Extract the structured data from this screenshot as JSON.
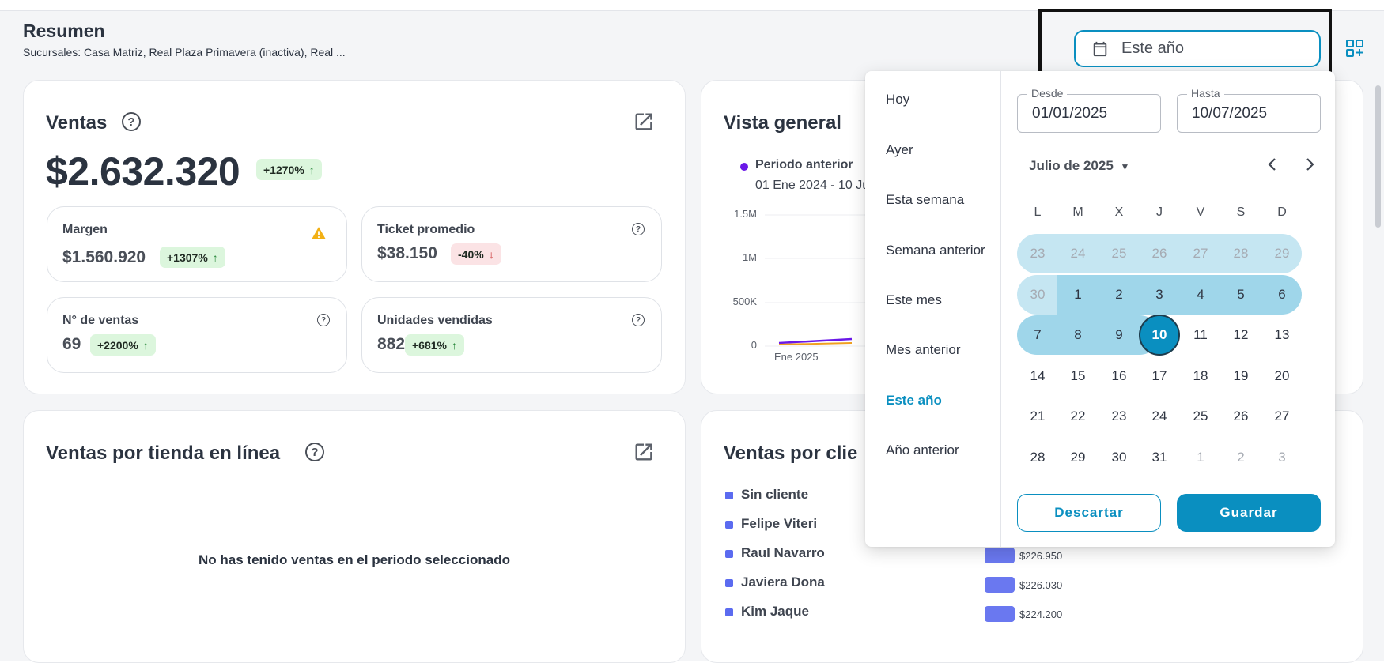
{
  "header": {
    "title": "Resumen",
    "subtitle": "Sucursales: Casa Matriz, Real Plaza Primavera (inactiva), Real ..."
  },
  "date_selector": {
    "value": "Este año"
  },
  "sales_card": {
    "title": "Ventas",
    "amount": "$2.632.320",
    "badge": "+1270%",
    "metrics": [
      {
        "label": "Margen",
        "value": "$1.560.920",
        "badge": "+1307%",
        "trend": "up"
      },
      {
        "label": "Ticket promedio",
        "value": "$38.150",
        "badge": "-40%",
        "trend": "down"
      },
      {
        "label": "N° de ventas",
        "value": "69",
        "badge": "+2200%",
        "trend": "up"
      },
      {
        "label": "Unidades vendidas",
        "value": "882",
        "badge": "+681%",
        "trend": "up"
      }
    ]
  },
  "overview_card": {
    "title": "Vista general",
    "legend_name": "Periodo anterior",
    "legend_range": "01 Ene 2024 - 10 Ju",
    "y_ticks": [
      "1.5M",
      "1M",
      "500K",
      "0"
    ],
    "x_tick": "Ene 2025"
  },
  "online_store_card": {
    "title": "Ventas por tienda en línea",
    "empty_message": "No has tenido ventas en el periodo seleccionado"
  },
  "customer_card": {
    "title": "Ventas por clie",
    "customers": [
      {
        "name": "Sin cliente",
        "value": ""
      },
      {
        "name": "Felipe Viteri",
        "value": ""
      },
      {
        "name": "Raul Navarro",
        "value": "$226.950"
      },
      {
        "name": "Javiera Dona",
        "value": "$226.030"
      },
      {
        "name": "Kim Jaque",
        "value": "$224.200"
      }
    ]
  },
  "date_picker": {
    "presets": [
      "Hoy",
      "Ayer",
      "Esta semana",
      "Semana anterior",
      "Este mes",
      "Mes anterior",
      "Este año",
      "Año anterior"
    ],
    "active_preset": "Este año",
    "from_label": "Desde",
    "from_value": "01/01/2025",
    "to_label": "Hasta",
    "to_value": "10/07/2025",
    "month_label": "Julio de 2025",
    "weekdays": [
      "L",
      "M",
      "X",
      "J",
      "V",
      "S",
      "D"
    ],
    "weeks": [
      [
        "23",
        "24",
        "25",
        "26",
        "27",
        "28",
        "29"
      ],
      [
        "30",
        "1",
        "2",
        "3",
        "4",
        "5",
        "6"
      ],
      [
        "7",
        "8",
        "9",
        "10",
        "11",
        "12",
        "13"
      ],
      [
        "14",
        "15",
        "16",
        "17",
        "18",
        "19",
        "20"
      ],
      [
        "21",
        "22",
        "23",
        "24",
        "25",
        "26",
        "27"
      ],
      [
        "28",
        "29",
        "30",
        "31",
        "1",
        "2",
        "3"
      ]
    ],
    "selected_day": "10",
    "discard_label": "Descartar",
    "save_label": "Guardar"
  },
  "colors": {
    "accent": "#0a8fc0",
    "range_light": "#c5e6f2",
    "range_dark": "#9fd6ea",
    "positive_badge": "#dcf6dd",
    "negative_badge": "#fbe3e5",
    "series_previous": "#6a18e8",
    "customer_bar": "#6a78f0"
  }
}
